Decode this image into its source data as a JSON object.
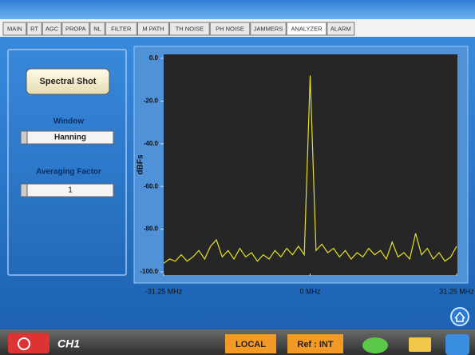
{
  "tabs": [
    "MAIN",
    "RT",
    "AGC",
    "PROPA",
    "NL",
    "FILTER",
    "M PATH",
    "TH NOISE",
    "PH NOISE",
    "JAMMERS",
    "ANALYZER",
    "ALARM"
  ],
  "active_tab": "ANALYZER",
  "left_panel": {
    "button": "Spectral Shot",
    "window_label": "Window",
    "window_value": "Hanning",
    "averaging_label": "Averaging Factor",
    "averaging_value": "1"
  },
  "chart_data": {
    "type": "line",
    "y_label": "dBFs",
    "xlim": [
      -31.25,
      31.25
    ],
    "ylim": [
      -100,
      0
    ],
    "xticks": [
      {
        "value": -31.25,
        "label": "-31.25 MHz"
      },
      {
        "value": 0,
        "label": "0 MHz"
      },
      {
        "value": 31.25,
        "label": "31.25 MHz"
      }
    ],
    "yticks": [
      {
        "value": 0,
        "label": "0.0"
      },
      {
        "value": -20,
        "label": "-20.0"
      },
      {
        "value": -40,
        "label": "-40.0"
      },
      {
        "value": -60,
        "label": "-60.0"
      },
      {
        "value": -80,
        "label": "-80.0"
      },
      {
        "value": -100,
        "label": "-100.0"
      }
    ],
    "x": [
      -31.25,
      -30,
      -28.75,
      -27.5,
      -26.25,
      -25,
      -23.75,
      -22.5,
      -21.25,
      -20,
      -18.75,
      -17.5,
      -16.25,
      -15,
      -13.75,
      -12.5,
      -11.25,
      -10,
      -8.75,
      -7.5,
      -6.25,
      -5,
      -3.75,
      -2.5,
      -1.25,
      0,
      1.25,
      2.5,
      3.75,
      5,
      6.25,
      7.5,
      8.75,
      10,
      11.25,
      12.5,
      13.75,
      15,
      16.25,
      17.5,
      18.75,
      20,
      21.25,
      22.5,
      23.75,
      25,
      26.25,
      27.5,
      28.75,
      30,
      31.25
    ],
    "values": [
      -96,
      -94,
      -95,
      -92,
      -95,
      -93,
      -90,
      -94,
      -88,
      -85,
      -93,
      -90,
      -94,
      -89,
      -93,
      -91,
      -95,
      -92,
      -94,
      -90,
      -93,
      -89,
      -92,
      -88,
      -92,
      -8,
      -90,
      -87,
      -91,
      -89,
      -93,
      -90,
      -94,
      -91,
      -93,
      -89,
      -92,
      -90,
      -94,
      -86,
      -93,
      -91,
      -94,
      -82,
      -92,
      -89,
      -94,
      -91,
      -95,
      -93,
      -88
    ],
    "color": "#e8e020",
    "plot_background": "#262626"
  },
  "status_bar": {
    "channel": "CH1",
    "mode": "LOCAL",
    "reference": "Ref : INT"
  }
}
